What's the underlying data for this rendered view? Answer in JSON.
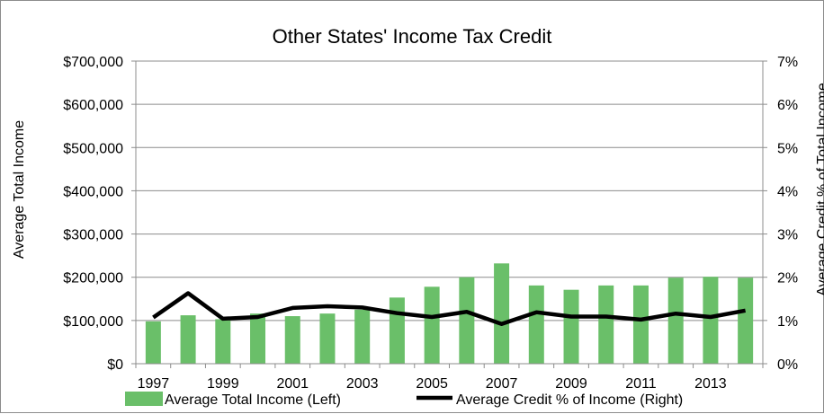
{
  "chart_data": {
    "type": "bar",
    "title": "Other States' Income Tax Credit",
    "ylabel_left": "Average  Total  Income",
    "ylabel_right": "Average  Credit  % of  Total  Income",
    "x": [
      1997,
      1998,
      1999,
      2000,
      2001,
      2002,
      2003,
      2004,
      2005,
      2006,
      2007,
      2008,
      2009,
      2010,
      2011,
      2012,
      2013,
      2014
    ],
    "x_tick_labels": [
      "1997",
      "1999",
      "2001",
      "2003",
      "2005",
      "2007",
      "2009",
      "2011",
      "2013"
    ],
    "y_left_ticks": [
      "$0",
      "$100,000",
      "$200,000",
      "$300,000",
      "$400,000",
      "$500,000",
      "$600,000",
      "$700,000"
    ],
    "y_right_ticks": [
      "0%",
      "1%",
      "2%",
      "3%",
      "4%",
      "5%",
      "6%",
      "7%"
    ],
    "ylim_left": [
      0,
      700000
    ],
    "ylim_right": [
      0,
      7
    ],
    "grid": true,
    "legend_position": "bottom",
    "series": [
      {
        "name": "Average Total Income (Left)",
        "type": "bar",
        "axis": "left",
        "color": "#6abf69",
        "values": [
          98000,
          112000,
          103000,
          116000,
          110000,
          116000,
          125000,
          153000,
          178000,
          200000,
          232000,
          181000,
          171000,
          181000,
          181000,
          199000,
          201000,
          199000
        ]
      },
      {
        "name": "Average Credit % of Income (Right)",
        "type": "line",
        "axis": "right",
        "color": "#000000",
        "values": [
          1.07,
          1.63,
          1.04,
          1.08,
          1.29,
          1.33,
          1.3,
          1.17,
          1.08,
          1.2,
          0.92,
          1.19,
          1.09,
          1.09,
          1.02,
          1.16,
          1.08,
          1.23
        ]
      }
    ]
  }
}
